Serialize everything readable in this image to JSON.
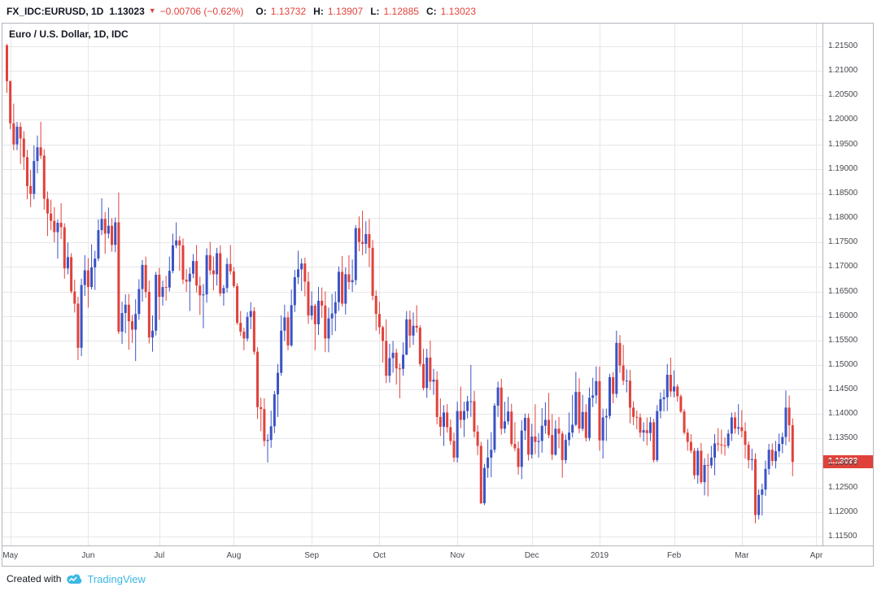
{
  "header": {
    "symbol": "FX_IDC:EURUSD, 1D",
    "last_price": "1.13023",
    "direction": "▼",
    "change": "−0.00706 (−0.62%)",
    "ohlc": {
      "o_label": "O:",
      "o": "1.13732",
      "h_label": "H:",
      "h": "1.13907",
      "l_label": "L:",
      "l": "1.12885",
      "c_label": "C:",
      "c": "1.13023"
    }
  },
  "footer": {
    "created_with": "Created with",
    "brand": "TradingView"
  },
  "colors": {
    "up": "#3a53c5",
    "down": "#e0423b",
    "brand": "#3db7e4",
    "grid": "#e7e7ea",
    "axis_text": "#44474f"
  },
  "chart_data": {
    "type": "candlestick",
    "symbol": "FX_IDC:EURUSD",
    "interval": "1D",
    "title": "Euro / U.S. Dollar, 1D, IDC",
    "last_price": 1.13023,
    "last_price_label": "1.13023",
    "ylim": [
      1.115,
      1.215
    ],
    "y_axis": {
      "top_price": 1.215,
      "bottom_price": 1.115,
      "tick_step": 0.005
    },
    "y_ticks": [
      "1.21500",
      "1.21000",
      "1.20500",
      "1.20000",
      "1.19500",
      "1.19000",
      "1.18500",
      "1.18000",
      "1.17500",
      "1.17000",
      "1.16500",
      "1.16000",
      "1.15500",
      "1.15000",
      "1.14500",
      "1.14000",
      "1.13500",
      "1.13000",
      "1.12500",
      "1.12000",
      "1.11500"
    ],
    "months": [
      {
        "label": "May",
        "i": 1
      },
      {
        "label": "Jun",
        "i": 24
      },
      {
        "label": "Jul",
        "i": 45
      },
      {
        "label": "Aug",
        "i": 67
      },
      {
        "label": "Sep",
        "i": 90
      },
      {
        "label": "Oct",
        "i": 110
      },
      {
        "label": "Nov",
        "i": 133
      },
      {
        "label": "Dec",
        "i": 155
      },
      {
        "label": "2019",
        "i": 175
      },
      {
        "label": "Feb",
        "i": 197
      },
      {
        "label": "Mar",
        "i": 217
      },
      {
        "label": "Apr",
        "i": 239
      }
    ],
    "first_open": 1.2152,
    "candles": [
      [
        1.2155,
        1.2055,
        1.2079
      ],
      [
        1.208,
        1.1981,
        1.1993
      ],
      [
        1.2033,
        1.1938,
        1.195
      ],
      [
        1.1996,
        1.1938,
        1.1986
      ],
      [
        1.1995,
        1.191,
        1.1962
      ],
      [
        1.1977,
        1.1898,
        1.1924
      ],
      [
        1.1939,
        1.1838,
        1.1865
      ],
      [
        1.1898,
        1.1822,
        1.1849
      ],
      [
        1.1948,
        1.1838,
        1.1916
      ],
      [
        1.1968,
        1.1891,
        1.1944
      ],
      [
        1.1996,
        1.192,
        1.1927
      ],
      [
        1.194,
        1.1817,
        1.1839
      ],
      [
        1.1854,
        1.1763,
        1.1809
      ],
      [
        1.1837,
        1.1775,
        1.1794
      ],
      [
        1.1822,
        1.175,
        1.1771
      ],
      [
        1.1797,
        1.1717,
        1.179
      ],
      [
        1.183,
        1.1757,
        1.1781
      ],
      [
        1.1789,
        1.1676,
        1.1697
      ],
      [
        1.175,
        1.1685,
        1.172
      ],
      [
        1.1728,
        1.1646,
        1.165
      ],
      [
        1.1674,
        1.1607,
        1.1625
      ],
      [
        1.1639,
        1.151,
        1.1535
      ],
      [
        1.1676,
        1.1518,
        1.1663
      ],
      [
        1.1724,
        1.1641,
        1.1693
      ],
      [
        1.1718,
        1.1617,
        1.1659
      ],
      [
        1.1746,
        1.1654,
        1.1699
      ],
      [
        1.1733,
        1.1653,
        1.1717
      ],
      [
        1.1797,
        1.1712,
        1.1775
      ],
      [
        1.184,
        1.1765,
        1.1798
      ],
      [
        1.1812,
        1.1727,
        1.1768
      ],
      [
        1.1821,
        1.1758,
        1.1784
      ],
      [
        1.18,
        1.1731,
        1.1745
      ],
      [
        1.1801,
        1.173,
        1.1791
      ],
      [
        1.1852,
        1.1563,
        1.1568
      ],
      [
        1.1629,
        1.1543,
        1.1606
      ],
      [
        1.1644,
        1.1565,
        1.1623
      ],
      [
        1.1645,
        1.1531,
        1.1589
      ],
      [
        1.1602,
        1.1545,
        1.1572
      ],
      [
        1.1634,
        1.1508,
        1.1604
      ],
      [
        1.1675,
        1.1592,
        1.1655
      ],
      [
        1.1714,
        1.1629,
        1.1704
      ],
      [
        1.1721,
        1.1637,
        1.1649
      ],
      [
        1.1672,
        1.1544,
        1.1556
      ],
      [
        1.1601,
        1.1527,
        1.157
      ],
      [
        1.169,
        1.156,
        1.1684
      ],
      [
        1.1698,
        1.1592,
        1.1639
      ],
      [
        1.1672,
        1.1621,
        1.1659
      ],
      [
        1.1682,
        1.1631,
        1.1658
      ],
      [
        1.1721,
        1.165,
        1.1692
      ],
      [
        1.1768,
        1.1687,
        1.1744
      ],
      [
        1.1791,
        1.1738,
        1.1754
      ],
      [
        1.1763,
        1.1692,
        1.1744
      ],
      [
        1.1758,
        1.1665,
        1.1674
      ],
      [
        1.1696,
        1.1649,
        1.167
      ],
      [
        1.1699,
        1.161,
        1.1686
      ],
      [
        1.1726,
        1.1677,
        1.1712
      ],
      [
        1.1745,
        1.1648,
        1.1662
      ],
      [
        1.168,
        1.1602,
        1.1642
      ],
      [
        1.1665,
        1.1575,
        1.1644
      ],
      [
        1.1738,
        1.1627,
        1.1724
      ],
      [
        1.1751,
        1.1684,
        1.1693
      ],
      [
        1.1721,
        1.1652,
        1.1685
      ],
      [
        1.1739,
        1.1662,
        1.1728
      ],
      [
        1.1744,
        1.164,
        1.1646
      ],
      [
        1.1663,
        1.1621,
        1.1657
      ],
      [
        1.1718,
        1.1648,
        1.1706
      ],
      [
        1.1745,
        1.1684,
        1.1691
      ],
      [
        1.17,
        1.1657,
        1.1661
      ],
      [
        1.1667,
        1.1582,
        1.1586
      ],
      [
        1.161,
        1.1559,
        1.1568
      ],
      [
        1.1576,
        1.153,
        1.1554
      ],
      [
        1.1608,
        1.1548,
        1.1598
      ],
      [
        1.1628,
        1.1573,
        1.161
      ],
      [
        1.1618,
        1.1521,
        1.1527
      ],
      [
        1.1536,
        1.139,
        1.1414
      ],
      [
        1.1433,
        1.1365,
        1.141
      ],
      [
        1.1432,
        1.1334,
        1.1345
      ],
      [
        1.1359,
        1.1301,
        1.1347
      ],
      [
        1.1407,
        1.1331,
        1.1375
      ],
      [
        1.1447,
        1.1361,
        1.144
      ],
      [
        1.1502,
        1.1394,
        1.1484
      ],
      [
        1.1601,
        1.1478,
        1.157
      ],
      [
        1.1623,
        1.1549,
        1.1597
      ],
      [
        1.1609,
        1.153,
        1.154
      ],
      [
        1.1654,
        1.1537,
        1.1622
      ],
      [
        1.1694,
        1.1608,
        1.1679
      ],
      [
        1.1733,
        1.1665,
        1.1695
      ],
      [
        1.1717,
        1.1651,
        1.1707
      ],
      [
        1.1719,
        1.164,
        1.167
      ],
      [
        1.169,
        1.1584,
        1.1601
      ],
      [
        1.165,
        1.1592,
        1.1621
      ],
      [
        1.1625,
        1.153,
        1.1583
      ],
      [
        1.1659,
        1.1561,
        1.1631
      ],
      [
        1.1658,
        1.1596,
        1.1621
      ],
      [
        1.165,
        1.1526,
        1.1554
      ],
      [
        1.1617,
        1.1526,
        1.1595
      ],
      [
        1.1645,
        1.1561,
        1.1605
      ],
      [
        1.165,
        1.1569,
        1.1628
      ],
      [
        1.1701,
        1.161,
        1.169
      ],
      [
        1.1722,
        1.1619,
        1.1625
      ],
      [
        1.1699,
        1.1603,
        1.1685
      ],
      [
        1.1724,
        1.1654,
        1.1669
      ],
      [
        1.1715,
        1.1649,
        1.1673
      ],
      [
        1.1785,
        1.1663,
        1.1779
      ],
      [
        1.1803,
        1.1732,
        1.1751
      ],
      [
        1.1815,
        1.1724,
        1.1747
      ],
      [
        1.1793,
        1.1727,
        1.1767
      ],
      [
        1.1798,
        1.17,
        1.1739
      ],
      [
        1.1755,
        1.1632,
        1.1641
      ],
      [
        1.1652,
        1.157,
        1.1604
      ],
      [
        1.1629,
        1.1563,
        1.1577
      ],
      [
        1.158,
        1.1505,
        1.1549
      ],
      [
        1.1593,
        1.1463,
        1.1478
      ],
      [
        1.1543,
        1.1464,
        1.1514
      ],
      [
        1.1549,
        1.1484,
        1.1525
      ],
      [
        1.1533,
        1.146,
        1.1493
      ],
      [
        1.1503,
        1.1432,
        1.1492
      ],
      [
        1.1546,
        1.1478,
        1.1521
      ],
      [
        1.161,
        1.152,
        1.1593
      ],
      [
        1.1611,
        1.1535,
        1.156
      ],
      [
        1.1607,
        1.1541,
        1.158
      ],
      [
        1.1622,
        1.1566,
        1.1576
      ],
      [
        1.1581,
        1.1497,
        1.1502
      ],
      [
        1.1533,
        1.1448,
        1.1453
      ],
      [
        1.1533,
        1.1433,
        1.1515
      ],
      [
        1.155,
        1.1449,
        1.1466
      ],
      [
        1.1492,
        1.1439,
        1.147
      ],
      [
        1.1487,
        1.1379,
        1.1394
      ],
      [
        1.1432,
        1.1355,
        1.1374
      ],
      [
        1.1418,
        1.1335,
        1.1403
      ],
      [
        1.142,
        1.1362,
        1.1373
      ],
      [
        1.1389,
        1.1337,
        1.1345
      ],
      [
        1.1362,
        1.1302,
        1.1311
      ],
      [
        1.1425,
        1.1301,
        1.1406
      ],
      [
        1.1456,
        1.1371,
        1.1388
      ],
      [
        1.1425,
        1.1353,
        1.1406
      ],
      [
        1.1437,
        1.1391,
        1.1426
      ],
      [
        1.15,
        1.1394,
        1.1426
      ],
      [
        1.1447,
        1.1352,
        1.1364
      ],
      [
        1.1377,
        1.1316,
        1.1335
      ],
      [
        1.1343,
        1.1216,
        1.1218
      ],
      [
        1.1298,
        1.1214,
        1.129
      ],
      [
        1.1348,
        1.127,
        1.1311
      ],
      [
        1.1363,
        1.1271,
        1.1327
      ],
      [
        1.1422,
        1.1321,
        1.1417
      ],
      [
        1.1466,
        1.1394,
        1.1454
      ],
      [
        1.1472,
        1.1358,
        1.137
      ],
      [
        1.1425,
        1.1361,
        1.1385
      ],
      [
        1.1435,
        1.1378,
        1.1405
      ],
      [
        1.1421,
        1.1334,
        1.1339
      ],
      [
        1.1383,
        1.1324,
        1.133
      ],
      [
        1.1344,
        1.1276,
        1.1292
      ],
      [
        1.1387,
        1.1267,
        1.1366
      ],
      [
        1.1401,
        1.1347,
        1.1392
      ],
      [
        1.1401,
        1.1305,
        1.1317
      ],
      [
        1.138,
        1.1309,
        1.1354
      ],
      [
        1.142,
        1.1318,
        1.1343
      ],
      [
        1.1361,
        1.1311,
        1.1345
      ],
      [
        1.1412,
        1.1321,
        1.1376
      ],
      [
        1.1424,
        1.136,
        1.1388
      ],
      [
        1.1443,
        1.1351,
        1.1357
      ],
      [
        1.14,
        1.1306,
        1.1317
      ],
      [
        1.1387,
        1.1315,
        1.137
      ],
      [
        1.1394,
        1.133,
        1.136
      ],
      [
        1.1365,
        1.127,
        1.1306
      ],
      [
        1.1358,
        1.1299,
        1.1347
      ],
      [
        1.1403,
        1.1335,
        1.1362
      ],
      [
        1.1439,
        1.1352,
        1.1378
      ],
      [
        1.1486,
        1.1375,
        1.1445
      ],
      [
        1.1473,
        1.1361,
        1.137
      ],
      [
        1.1439,
        1.1365,
        1.1404
      ],
      [
        1.142,
        1.1344,
        1.1351
      ],
      [
        1.1454,
        1.1345,
        1.1433
      ],
      [
        1.1474,
        1.1414,
        1.1438
      ],
      [
        1.1497,
        1.1421,
        1.1467
      ],
      [
        1.1497,
        1.1325,
        1.1346
      ],
      [
        1.1411,
        1.1309,
        1.1393
      ],
      [
        1.1411,
        1.1345,
        1.1396
      ],
      [
        1.1482,
        1.139,
        1.1475
      ],
      [
        1.1485,
        1.1422,
        1.1441
      ],
      [
        1.157,
        1.1433,
        1.1545
      ],
      [
        1.1561,
        1.1484,
        1.1499
      ],
      [
        1.1541,
        1.1459,
        1.1468
      ],
      [
        1.1491,
        1.1444,
        1.1468
      ],
      [
        1.149,
        1.1381,
        1.1413
      ],
      [
        1.1426,
        1.1377,
        1.1394
      ],
      [
        1.1407,
        1.1369,
        1.1393
      ],
      [
        1.1401,
        1.1352,
        1.1362
      ],
      [
        1.1383,
        1.1344,
        1.1367
      ],
      [
        1.1393,
        1.1336,
        1.1361
      ],
      [
        1.1394,
        1.1345,
        1.1383
      ],
      [
        1.139,
        1.1301,
        1.1306
      ],
      [
        1.1418,
        1.1302,
        1.1406
      ],
      [
        1.1444,
        1.1391,
        1.143
      ],
      [
        1.145,
        1.1405,
        1.1434
      ],
      [
        1.1502,
        1.1406,
        1.148
      ],
      [
        1.1515,
        1.1435,
        1.1446
      ],
      [
        1.1489,
        1.1434,
        1.1456
      ],
      [
        1.1461,
        1.1425,
        1.1436
      ],
      [
        1.144,
        1.1402,
        1.1405
      ],
      [
        1.141,
        1.1358,
        1.1362
      ],
      [
        1.137,
        1.1325,
        1.1343
      ],
      [
        1.1359,
        1.132,
        1.1325
      ],
      [
        1.1331,
        1.1267,
        1.1275
      ],
      [
        1.1331,
        1.1258,
        1.1325
      ],
      [
        1.1341,
        1.1257,
        1.1261
      ],
      [
        1.131,
        1.1234,
        1.1296
      ],
      [
        1.1319,
        1.1232,
        1.1295
      ],
      [
        1.1335,
        1.1289,
        1.1311
      ],
      [
        1.1359,
        1.1275,
        1.134
      ],
      [
        1.1371,
        1.1324,
        1.1338
      ],
      [
        1.1368,
        1.1318,
        1.1336
      ],
      [
        1.1352,
        1.1315,
        1.1335
      ],
      [
        1.1368,
        1.133,
        1.136
      ],
      [
        1.1403,
        1.1345,
        1.1393
      ],
      [
        1.1404,
        1.136,
        1.137
      ],
      [
        1.142,
        1.1358,
        1.1373
      ],
      [
        1.1408,
        1.1352,
        1.1365
      ],
      [
        1.1383,
        1.1309,
        1.1337
      ],
      [
        1.1344,
        1.1289,
        1.1306
      ],
      [
        1.1329,
        1.1285,
        1.1308
      ],
      [
        1.132,
        1.1177,
        1.1194
      ],
      [
        1.1246,
        1.1185,
        1.1235
      ],
      [
        1.1258,
        1.1193,
        1.1246
      ],
      [
        1.1305,
        1.1233,
        1.1288
      ],
      [
        1.1339,
        1.1276,
        1.1327
      ],
      [
        1.134,
        1.1294,
        1.1304
      ],
      [
        1.1345,
        1.1289,
        1.1324
      ],
      [
        1.136,
        1.1312,
        1.1339
      ],
      [
        1.1362,
        1.132,
        1.1353
      ],
      [
        1.1448,
        1.1336,
        1.1413
      ],
      [
        1.1438,
        1.1343,
        1.1377
      ],
      [
        1.1391,
        1.1273,
        1.1302
      ]
    ]
  }
}
